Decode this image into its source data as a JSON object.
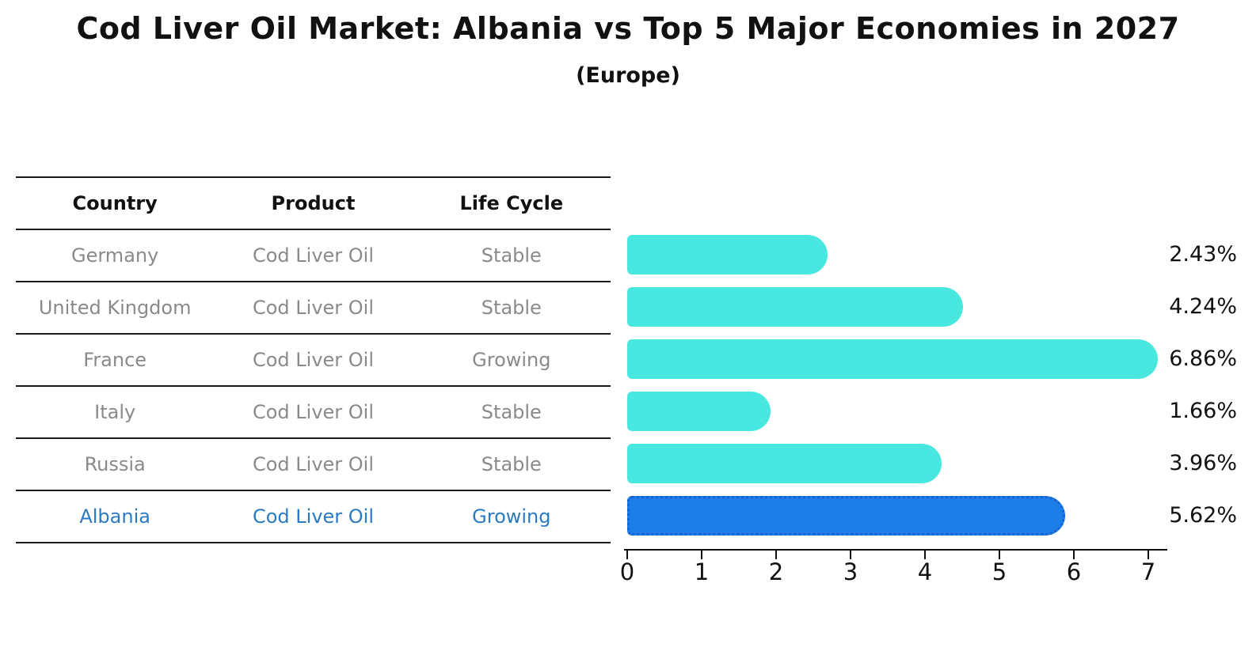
{
  "header": {
    "title": "Cod Liver Oil Market: Albania vs Top 5 Major Economies in 2027",
    "subtitle": "(Europe)"
  },
  "table": {
    "columns": [
      "Country",
      "Product",
      "Life Cycle"
    ],
    "rows": [
      {
        "country": "Germany",
        "product": "Cod Liver Oil",
        "life_cycle": "Stable",
        "highlight": false
      },
      {
        "country": "United Kingdom",
        "product": "Cod Liver Oil",
        "life_cycle": "Stable",
        "highlight": false
      },
      {
        "country": "France",
        "product": "Cod Liver Oil",
        "life_cycle": "Growing",
        "highlight": false
      },
      {
        "country": "Italy",
        "product": "Cod Liver Oil",
        "life_cycle": "Stable",
        "highlight": false
      },
      {
        "country": "Russia",
        "product": "Cod Liver Oil",
        "life_cycle": "Stable",
        "highlight": false
      },
      {
        "country": "Albania",
        "product": "Cod Liver Oil",
        "life_cycle": "Growing",
        "highlight": true
      }
    ]
  },
  "chart_data": {
    "type": "bar",
    "orientation": "horizontal",
    "title": "Cod Liver Oil Market: Albania vs Top 5 Major Economies in 2027",
    "subtitle": "(Europe)",
    "categories": [
      "Germany",
      "United Kingdom",
      "France",
      "Italy",
      "Russia",
      "Albania"
    ],
    "values": [
      2.43,
      4.24,
      6.86,
      1.66,
      3.96,
      5.62
    ],
    "value_labels": [
      "2.43%",
      "4.24%",
      "6.86%",
      "1.66%",
      "3.96%",
      "5.62%"
    ],
    "xlabel": "",
    "ylabel": "",
    "xlim": [
      0,
      7
    ],
    "x_ticks": [
      "0",
      "1",
      "2",
      "3",
      "4",
      "5",
      "6",
      "7"
    ],
    "grid": false,
    "legend": false,
    "highlight_category": "Albania",
    "colors": {
      "bar_default": "#48e8e1",
      "bar_highlight": "#1e7ee8",
      "bar_highlight_border": "#1263d6",
      "highlight_text": "#2b7bc4",
      "row_text": "#8a8a8a",
      "header_text": "#111111",
      "value_label_text": "#111111",
      "axis": "#111111"
    }
  }
}
